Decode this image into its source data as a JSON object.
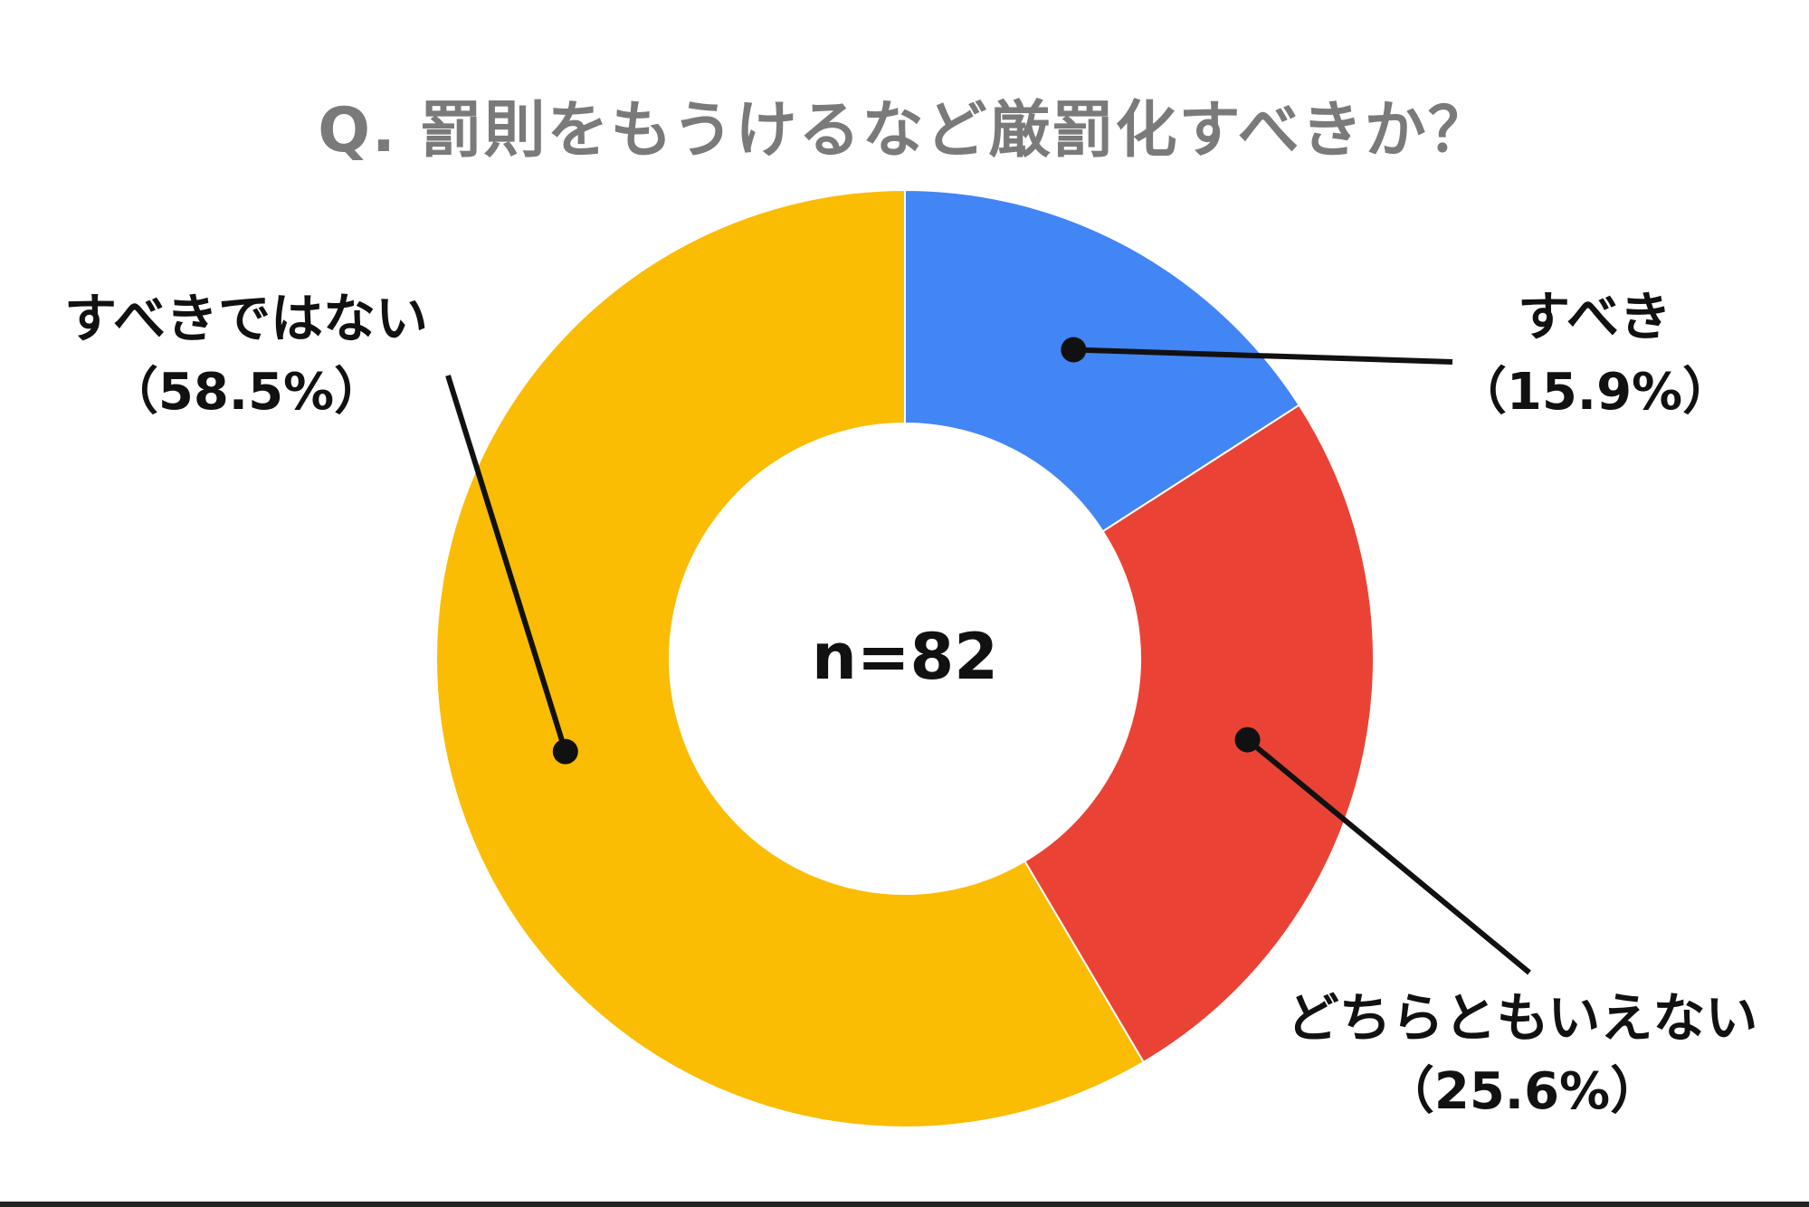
{
  "title": "Q. 罰則をもうけるなど厳罰化すべきか？",
  "chart_data": {
    "type": "pie",
    "donut": true,
    "title": "Q. 罰則をもうけるなど厳罰化すべきか？",
    "center_label": "n=82",
    "slices": [
      {
        "label": "すべき",
        "value": 15.9,
        "value_label": "（15.9%）",
        "color": "#4285F4"
      },
      {
        "label": "どちらともいえない",
        "value": 25.6,
        "value_label": "（25.6%）",
        "color": "#EA4335"
      },
      {
        "label": "すべきではない",
        "value": 58.5,
        "value_label": "（58.5%）",
        "color": "#FBBC04"
      }
    ],
    "legend": "none"
  }
}
